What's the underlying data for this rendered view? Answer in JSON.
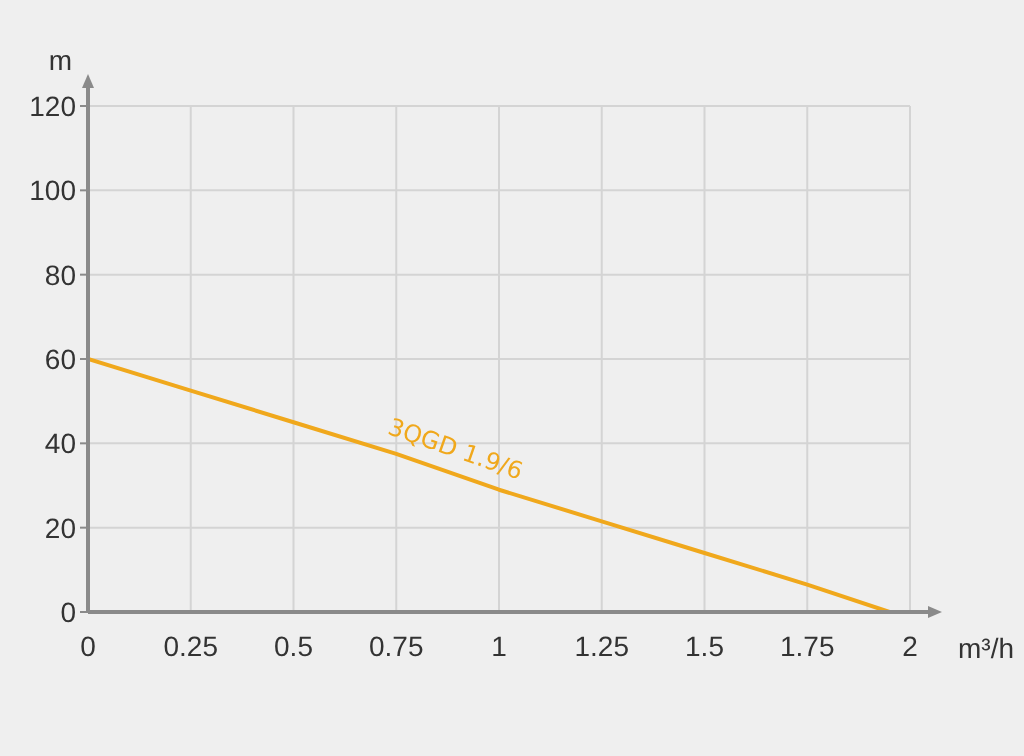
{
  "chart_data": {
    "type": "line",
    "xlabel": "m³/h",
    "ylabel": "m",
    "x": [
      0,
      0.25,
      0.5,
      0.75,
      1,
      1.25,
      1.5,
      1.75,
      1.95
    ],
    "series": [
      {
        "name": "3QGD 1.9/6",
        "color": "#f0a81c",
        "values": [
          60,
          52.5,
          45,
          37.5,
          29,
          21.5,
          14,
          6.5,
          0
        ]
      }
    ],
    "xlim": [
      0,
      2
    ],
    "xticks": [
      0,
      0.25,
      0.5,
      0.75,
      1,
      1.25,
      1.5,
      1.75,
      2
    ],
    "ylim": [
      0,
      120
    ],
    "yticks": [
      0,
      20,
      40,
      60,
      80,
      100,
      120
    ],
    "grid": true,
    "legend": false,
    "marker": "none",
    "line_style": "solid"
  }
}
